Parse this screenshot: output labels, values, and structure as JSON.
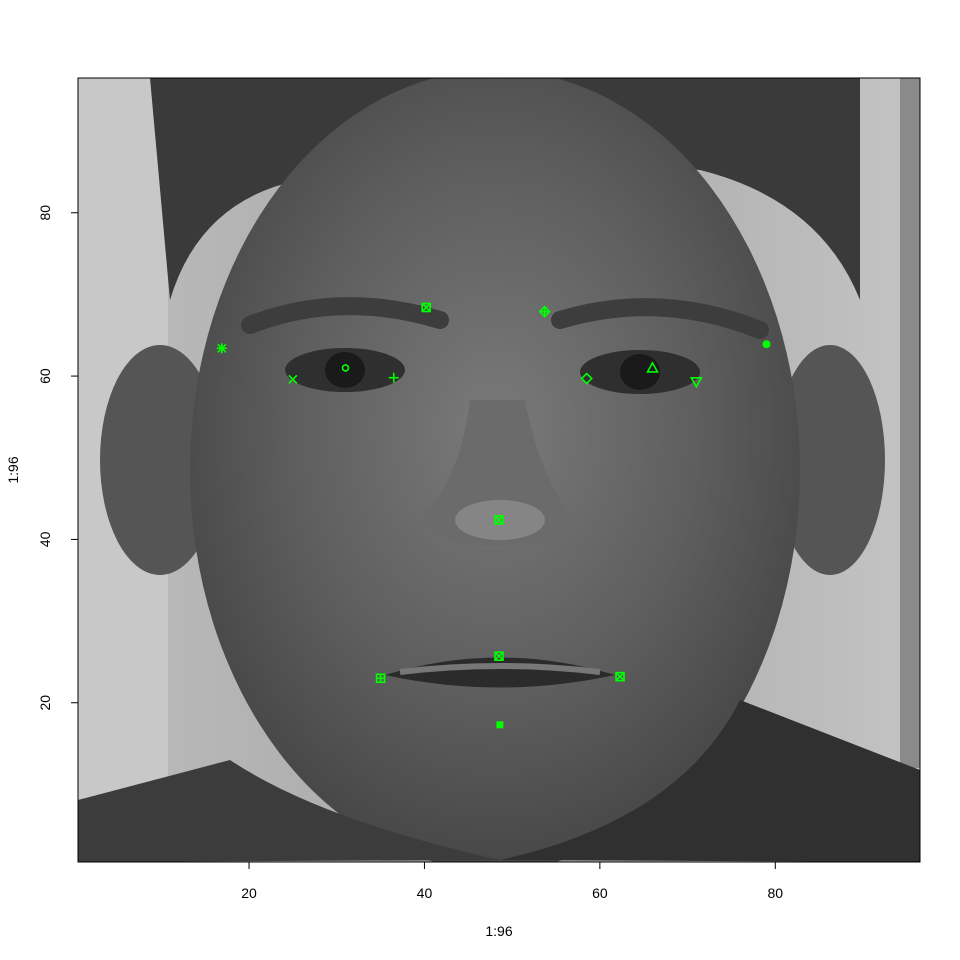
{
  "chart_data": {
    "type": "scatter",
    "title": "",
    "xlabel": "1:96",
    "ylabel": "1:96",
    "xlim": [
      0.5,
      96.5
    ],
    "ylim": [
      0.5,
      96.5
    ],
    "x_ticks": [
      20,
      40,
      60,
      80
    ],
    "y_ticks": [
      20,
      40,
      60,
      80
    ],
    "background": "grayscale face image (96x96)",
    "marker_color": "#00ff00",
    "points": [
      {
        "name": "left-eye-center",
        "x": 66.0,
        "y": 61.0,
        "shape": "triangle"
      },
      {
        "name": "right-eye-center",
        "x": 31.0,
        "y": 61.0,
        "shape": "circle"
      },
      {
        "name": "left-eye-inner-corner",
        "x": 58.5,
        "y": 59.7,
        "shape": "diamond"
      },
      {
        "name": "left-eye-outer-corner",
        "x": 71.0,
        "y": 59.3,
        "shape": "triangle-down"
      },
      {
        "name": "right-eye-inner-corner",
        "x": 36.5,
        "y": 59.8,
        "shape": "plus"
      },
      {
        "name": "right-eye-outer-corner",
        "x": 25.0,
        "y": 59.6,
        "shape": "cross"
      },
      {
        "name": "left-eyebrow-inner-end",
        "x": 53.7,
        "y": 67.9,
        "shape": "diamond-plus"
      },
      {
        "name": "left-eyebrow-outer-end",
        "x": 79.0,
        "y": 63.9,
        "shape": "circle-plus"
      },
      {
        "name": "right-eyebrow-inner-end",
        "x": 40.2,
        "y": 68.4,
        "shape": "square-cross"
      },
      {
        "name": "right-eyebrow-outer-end",
        "x": 16.9,
        "y": 63.4,
        "shape": "asterisk"
      },
      {
        "name": "nose-tip",
        "x": 48.5,
        "y": 42.4,
        "shape": "square-cross"
      },
      {
        "name": "mouth-left-corner",
        "x": 62.3,
        "y": 23.2,
        "shape": "square-cross"
      },
      {
        "name": "mouth-right-corner",
        "x": 35.0,
        "y": 23.0,
        "shape": "square-plus"
      },
      {
        "name": "mouth-center-top-lip",
        "x": 48.5,
        "y": 25.7,
        "shape": "square-cross"
      },
      {
        "name": "mouth-center-bottom-lip",
        "x": 48.6,
        "y": 17.3,
        "shape": "square-filled"
      }
    ]
  }
}
